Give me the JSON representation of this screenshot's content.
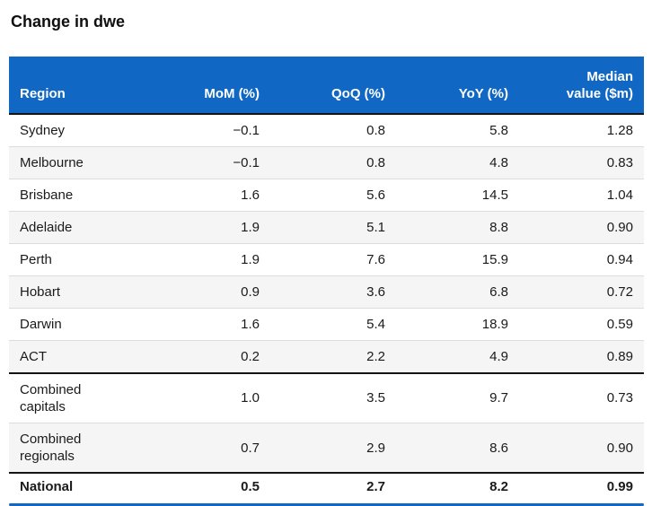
{
  "chart_data": {
    "type": "table",
    "title": "Change in dwe",
    "columns": [
      "Region",
      "MoM (%)",
      "QoQ (%)",
      "YoY (%)",
      "Median value ($m)"
    ],
    "field_order": [
      "region",
      "mom",
      "qoq",
      "yoy",
      "median"
    ],
    "rows": [
      {
        "region": "Sydney",
        "mom": "−0.1",
        "qoq": "0.8",
        "yoy": "5.8",
        "median": "1.28"
      },
      {
        "region": "Melbourne",
        "mom": "−0.1",
        "qoq": "0.8",
        "yoy": "4.8",
        "median": "0.83"
      },
      {
        "region": "Brisbane",
        "mom": "1.6",
        "qoq": "5.6",
        "yoy": "14.5",
        "median": "1.04"
      },
      {
        "region": "Adelaide",
        "mom": "1.9",
        "qoq": "5.1",
        "yoy": "8.8",
        "median": "0.90"
      },
      {
        "region": "Perth",
        "mom": "1.9",
        "qoq": "7.6",
        "yoy": "15.9",
        "median": "0.94"
      },
      {
        "region": "Hobart",
        "mom": "0.9",
        "qoq": "3.6",
        "yoy": "6.8",
        "median": "0.72"
      },
      {
        "region": "Darwin",
        "mom": "1.6",
        "qoq": "5.4",
        "yoy": "18.9",
        "median": "0.59"
      },
      {
        "region": "ACT",
        "mom": "0.2",
        "qoq": "2.2",
        "yoy": "4.9",
        "median": "0.89"
      },
      {
        "region": "Combined capitals",
        "mom": "1.0",
        "qoq": "3.5",
        "yoy": "9.7",
        "median": "0.73",
        "section_break": true
      },
      {
        "region": "Combined regionals",
        "mom": "0.7",
        "qoq": "2.9",
        "yoy": "8.6",
        "median": "0.90"
      },
      {
        "region": "National",
        "mom": "0.5",
        "qoq": "2.7",
        "yoy": "8.2",
        "median": "0.99",
        "section_break": true,
        "emphasis": true,
        "compact": true
      }
    ]
  },
  "colors": {
    "header_bg": "#1068C4",
    "header_text": "#FFFFFF",
    "stripe": "#F5F5F5",
    "divider": "#DCDCDC",
    "section_border": "#141414",
    "scrollbar": "#1068C4",
    "title_color": "#0F0F0F",
    "body_text": "#1A1A1A"
  }
}
